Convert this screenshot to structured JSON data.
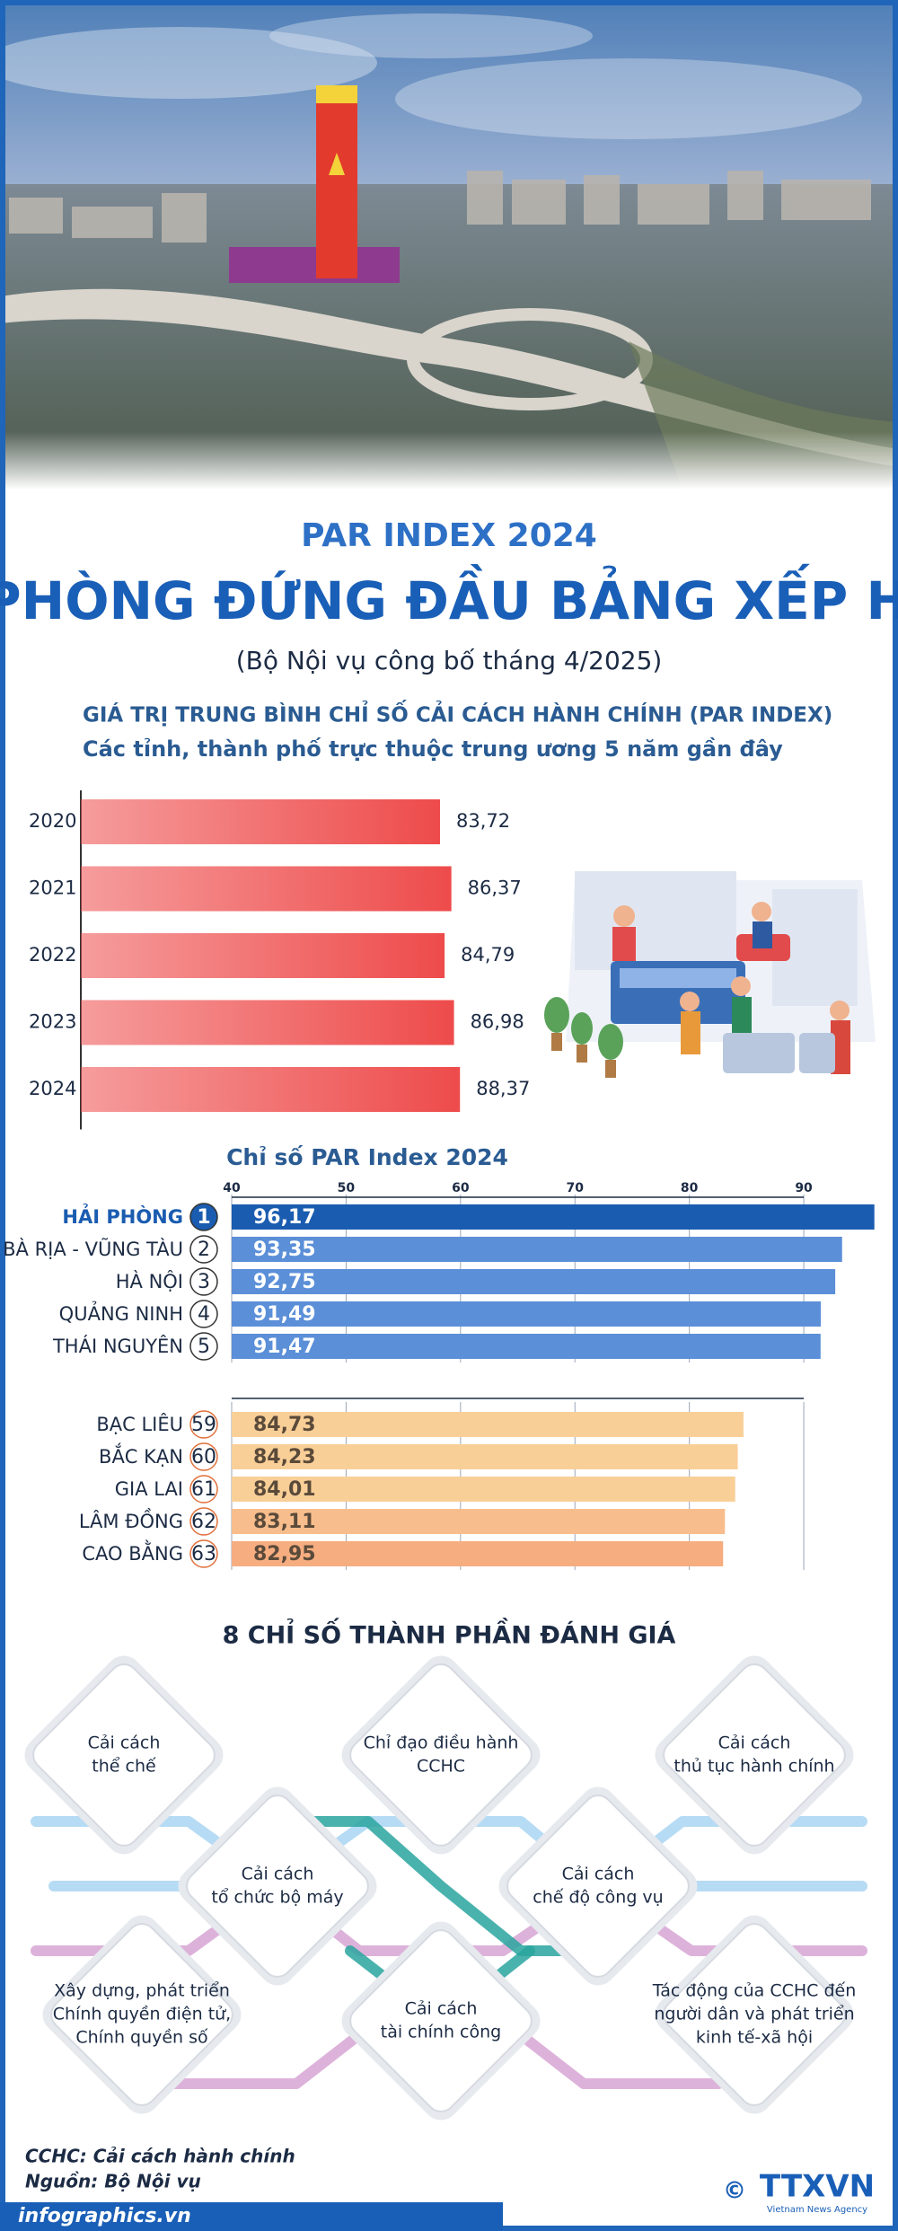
{
  "header": {
    "kicker": "PAR INDEX 2024",
    "title": "HẢI PHÒNG ĐỨNG ĐẦU BẢNG XẾP HẠNG",
    "subtitle": "(Bộ Nội vụ công bố tháng 4/2025)"
  },
  "chart_data": [
    {
      "type": "bar",
      "title": "GIÁ TRỊ TRUNG BÌNH CHỈ SỐ CẢI CÁCH HÀNH CHÍNH (PAR INDEX)",
      "subtitle": "Các tỉnh, thành phố trực thuộc trung ương 5 năm gần đây",
      "categories": [
        "2020",
        "2021",
        "2022",
        "2023",
        "2024"
      ],
      "values": [
        83.72,
        86.37,
        84.79,
        86.98,
        88.37
      ],
      "value_labels": [
        "83,72",
        "86,37",
        "84,79",
        "86,98",
        "88,37"
      ],
      "color": "#ee4b4b",
      "xlim": [
        0,
        90
      ]
    },
    {
      "type": "bar",
      "title": "Chỉ số PAR Index 2024",
      "categories": [
        "HẢI PHÒNG",
        "BÀ RỊA - VŨNG TÀU",
        "HÀ NỘI",
        "QUẢNG NINH",
        "THÁI NGUYÊN",
        "BẠC LIÊU",
        "BẮC KẠN",
        "GIA LAI",
        "LÂM ĐỒNG",
        "CAO BẰNG"
      ],
      "ranks": [
        1,
        2,
        3,
        4,
        5,
        59,
        60,
        61,
        62,
        63
      ],
      "values": [
        96.17,
        93.35,
        92.75,
        91.49,
        91.47,
        84.73,
        84.23,
        84.01,
        83.11,
        82.95
      ],
      "value_labels": [
        "96,17",
        "93,35",
        "92,75",
        "91,49",
        "91,47",
        "84,73",
        "84,23",
        "84,01",
        "83,11",
        "82,95"
      ],
      "colors": [
        "#1a5cb0",
        "#5b8fd8",
        "#5b8fd8",
        "#5b8fd8",
        "#5b8fd8",
        "#f9cf98",
        "#f9cf98",
        "#f9cf98",
        "#f8bd8c",
        "#f6ad80"
      ],
      "xlim": [
        40,
        98
      ],
      "xticks": [
        40,
        50,
        60,
        70,
        80,
        90
      ],
      "grid": true
    }
  ],
  "components": {
    "title": "8 CHỈ SỐ THÀNH PHẦN ĐÁNH GIÁ",
    "items": [
      [
        "Cải cách",
        "thể chế"
      ],
      [
        "Chỉ đạo điều hành",
        "CCHC"
      ],
      [
        "Cải cách",
        "thủ tục hành chính"
      ],
      [
        "Cải cách",
        "tổ chức bộ máy"
      ],
      [
        "Cải cách",
        "chế độ công vụ"
      ],
      [
        "Xây dựng, phát triển",
        "Chính quyền điện tử,",
        "Chính quyền số"
      ],
      [
        "Cải cách",
        "tài chính công"
      ],
      [
        "Tác động của CCHC đến",
        "người dân và phát triển",
        "kinh tế-xã hội"
      ]
    ]
  },
  "footer": {
    "note": "CCHC: Cải cách hành chính",
    "source": "Nguồn: Bộ Nội vụ",
    "site": "infographics.vn",
    "copyright": "©",
    "agency": "TTXVN",
    "agency_en": "Vietnam News Agency"
  }
}
